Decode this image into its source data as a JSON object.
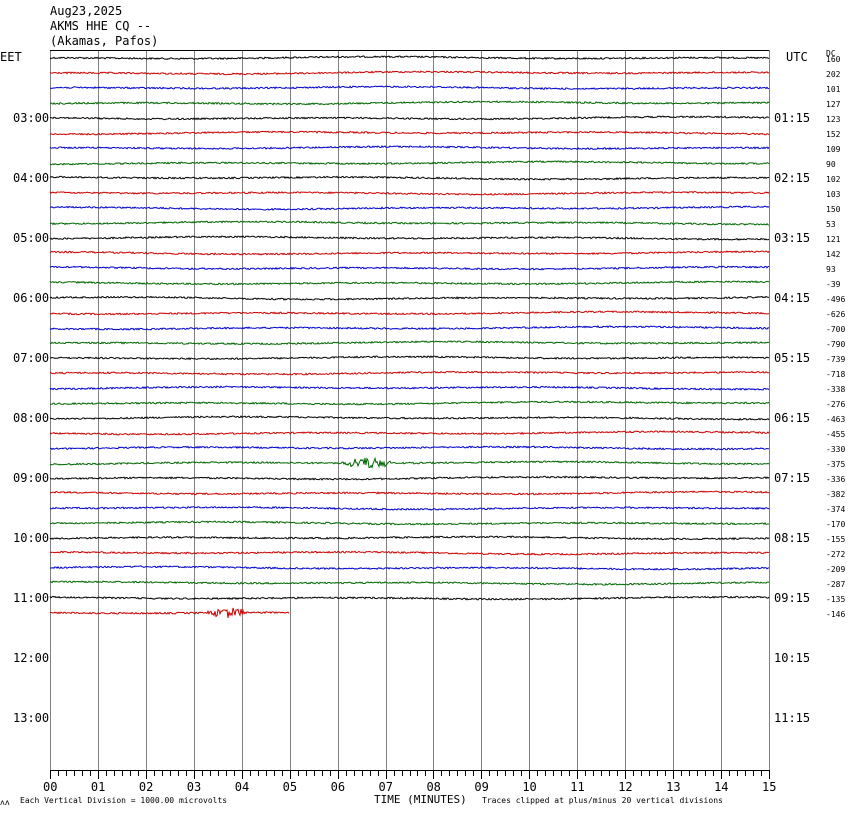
{
  "header": {
    "date": "Aug23,2025",
    "station": "AKMS HHE CQ --",
    "location": "(Akamas, Pafos)"
  },
  "left_tz": "EET",
  "right_tz": "UTC",
  "dc_label": "DC",
  "footer": {
    "corner": "ʌʌ",
    "scale": "Each Vertical Division = 1000.00 microvolts",
    "xlabel": "TIME (MINUTES)",
    "clip_note": "Traces clipped at plus/minus 20 vertical divisions"
  },
  "colors": {
    "trace_cycle": [
      "#000000",
      "#cc0000",
      "#0000cc",
      "#006600"
    ],
    "grid": "#808080"
  },
  "chart_data": {
    "type": "line",
    "x_range": [
      0,
      15
    ],
    "x_ticks": [
      "00",
      "01",
      "02",
      "03",
      "04",
      "05",
      "06",
      "07",
      "08",
      "09",
      "10",
      "11",
      "12",
      "13",
      "14",
      "15"
    ],
    "rows_per_hour": 4,
    "left_hour_labels": [
      "03:00",
      "04:00",
      "05:00",
      "06:00",
      "07:00",
      "08:00",
      "09:00",
      "10:00",
      "11:00",
      "12:00",
      "13:00"
    ],
    "right_hour_labels": [
      "01:15",
      "02:15",
      "03:15",
      "04:15",
      "05:15",
      "06:15",
      "07:15",
      "08:15",
      "09:15",
      "10:15",
      "11:15"
    ],
    "dc_offsets": [
      "160",
      "202",
      "101",
      "127",
      "123",
      "152",
      "109",
      "90",
      "102",
      "103",
      "150",
      "53",
      "121",
      "142",
      "93",
      "-39",
      "-496",
      "-626",
      "-700",
      "-790",
      "-739",
      "-718",
      "-338",
      "-276",
      "-463",
      "-455",
      "-330",
      "-375",
      "-336",
      "-382",
      "-374",
      "-170",
      "-155",
      "-272",
      "-209",
      "-287",
      "-135",
      "-146"
    ],
    "trace_count": 38,
    "last_trace_end_minute": 5,
    "events": [
      {
        "row": 27,
        "start_minute": 6.0,
        "end_minute": 7.2
      },
      {
        "row": 37,
        "start_minute": 3.2,
        "end_minute": 4.2
      }
    ]
  }
}
